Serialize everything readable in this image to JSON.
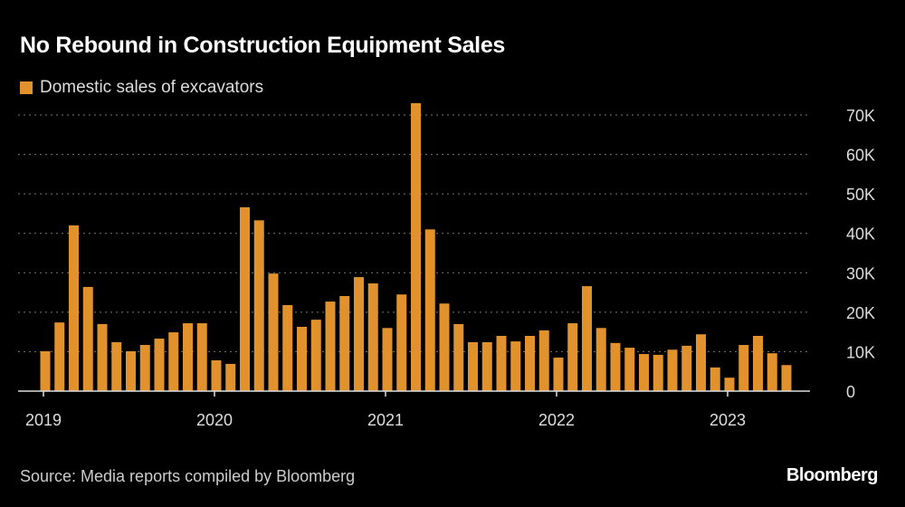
{
  "chart_data": {
    "type": "bar",
    "title": "No Rebound in Construction Equipment Sales",
    "legend": [
      "Domestic sales of excavators"
    ],
    "series": [
      {
        "name": "Domestic sales of excavators",
        "color": "#e1922d",
        "values": [
          10.1,
          17.4,
          42,
          26.4,
          17,
          12.4,
          10.1,
          11.7,
          13.3,
          14.9,
          17.2,
          17.2,
          7.8,
          6.9,
          46.6,
          43.3,
          29.8,
          21.8,
          16.3,
          18.1,
          22.7,
          24.1,
          28.9,
          27.3,
          16,
          24.5,
          73,
          41,
          22.2,
          17,
          12.4,
          12.4,
          14,
          12.6,
          14,
          15.4,
          8.5,
          17.2,
          26.6,
          16,
          12.2,
          11,
          9.4,
          9.2,
          10.5,
          11.5,
          14.4,
          6,
          3.4,
          11.7,
          14,
          9.6,
          6.6
        ]
      }
    ],
    "x_start": "2019-01",
    "x_frequency": "monthly",
    "xticks": [
      "2019",
      "2020",
      "2021",
      "2022",
      "2023"
    ],
    "yticks": [
      0,
      10,
      20,
      30,
      40,
      50,
      60,
      70
    ],
    "ytick_labels": [
      "0",
      "10K",
      "20K",
      "30K",
      "40K",
      "50K",
      "60K",
      "70K"
    ],
    "ylim": [
      0,
      70
    ],
    "y_unit": "thousands",
    "grid": true,
    "legend_position": "top-left",
    "source": "Source: Media reports compiled by Bloomberg",
    "brand": "Bloomberg"
  }
}
